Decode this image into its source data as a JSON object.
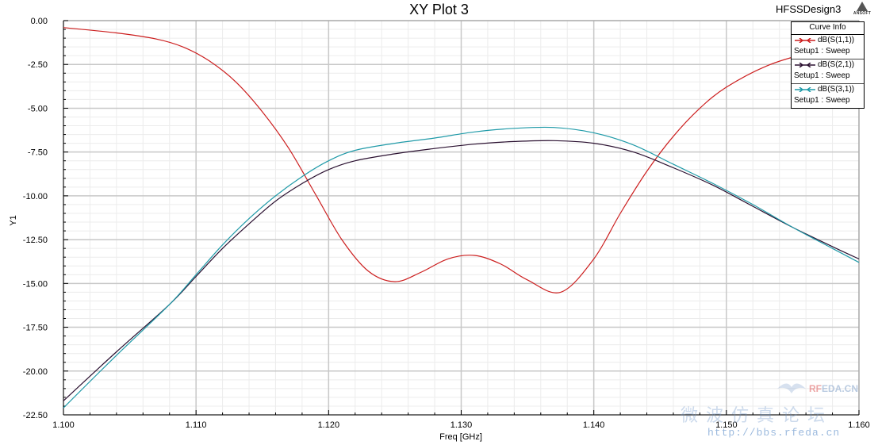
{
  "header": {
    "title": "XY Plot 3",
    "design": "HFSSDesign3",
    "logo_text": "ANSOFT"
  },
  "legend": {
    "title": "Curve Info",
    "entries": [
      {
        "name": "dB(S(1,1))",
        "setup": "Setup1 : Sweep",
        "color": "#cc1f1f"
      },
      {
        "name": "dB(S(2,1))",
        "setup": "Setup1 : Sweep",
        "color": "#2a1030"
      },
      {
        "name": "dB(S(3,1))",
        "setup": "Setup1 : Sweep",
        "color": "#1f9aa8"
      }
    ]
  },
  "watermark": {
    "forum": "微波仿真论坛",
    "brand_accent": "RF",
    "brand_rest": "EDA.CN",
    "url": "http://bbs.rfeda.cn"
  },
  "chart_data": {
    "type": "line",
    "title": "XY Plot 3",
    "xlabel": "Freq [GHz]",
    "ylabel": "Y1",
    "xlim": [
      1.1,
      1.16
    ],
    "ylim": [
      -22.5,
      0.0
    ],
    "xticks": [
      1.1,
      1.11,
      1.12,
      1.13,
      1.14,
      1.15,
      1.16
    ],
    "xtick_labels": [
      "1.100",
      "1.110",
      "1.120",
      "1.130",
      "1.140",
      "1.150",
      "1.160"
    ],
    "yticks": [
      0,
      -2.5,
      -5,
      -7.5,
      -10,
      -12.5,
      -15,
      -17.5,
      -20,
      -22.5
    ],
    "ytick_labels": [
      "0.00",
      "-2.50",
      "-5.00",
      "-7.50",
      "-10.00",
      "-12.50",
      "-15.00",
      "-17.50",
      "-20.00",
      "-22.50"
    ],
    "grid": true,
    "legend_position": "top-right",
    "series": [
      {
        "name": "dB(S(1,1))",
        "color": "#cc1f1f",
        "x": [
          1.1,
          1.104,
          1.107,
          1.109,
          1.111,
          1.113,
          1.115,
          1.117,
          1.119,
          1.121,
          1.123,
          1.125,
          1.127,
          1.129,
          1.131,
          1.133,
          1.135,
          1.1375,
          1.14,
          1.142,
          1.144,
          1.146,
          1.148,
          1.15,
          1.153,
          1.156,
          1.16
        ],
        "y": [
          -0.4,
          -0.7,
          -1.05,
          -1.5,
          -2.3,
          -3.5,
          -5.2,
          -7.3,
          -9.9,
          -12.5,
          -14.3,
          -14.9,
          -14.35,
          -13.6,
          -13.4,
          -13.9,
          -14.8,
          -15.5,
          -13.6,
          -11.0,
          -8.6,
          -6.6,
          -5.0,
          -3.8,
          -2.6,
          -1.9,
          -1.4
        ]
      },
      {
        "name": "dB(S(2,1))",
        "color": "#2a1030",
        "x": [
          1.1,
          1.104,
          1.108,
          1.11,
          1.112,
          1.114,
          1.116,
          1.118,
          1.12,
          1.122,
          1.125,
          1.128,
          1.131,
          1.134,
          1.137,
          1.14,
          1.143,
          1.146,
          1.149,
          1.152,
          1.155,
          1.158,
          1.16
        ],
        "y": [
          -21.7,
          -18.9,
          -16.2,
          -14.6,
          -13.0,
          -11.6,
          -10.3,
          -9.3,
          -8.5,
          -8.0,
          -7.6,
          -7.3,
          -7.05,
          -6.9,
          -6.85,
          -7.0,
          -7.5,
          -8.4,
          -9.4,
          -10.6,
          -11.8,
          -12.9,
          -13.6
        ]
      },
      {
        "name": "dB(S(3,1))",
        "color": "#1f9aa8",
        "x": [
          1.1,
          1.104,
          1.108,
          1.11,
          1.112,
          1.114,
          1.116,
          1.118,
          1.12,
          1.122,
          1.125,
          1.128,
          1.131,
          1.134,
          1.137,
          1.14,
          1.143,
          1.146,
          1.149,
          1.152,
          1.155,
          1.158,
          1.16
        ],
        "y": [
          -22.1,
          -19.1,
          -16.2,
          -14.5,
          -12.8,
          -11.3,
          -10.0,
          -8.9,
          -8.0,
          -7.4,
          -7.0,
          -6.7,
          -6.35,
          -6.15,
          -6.1,
          -6.4,
          -7.1,
          -8.2,
          -9.3,
          -10.5,
          -11.8,
          -13.0,
          -13.8
        ]
      }
    ]
  }
}
